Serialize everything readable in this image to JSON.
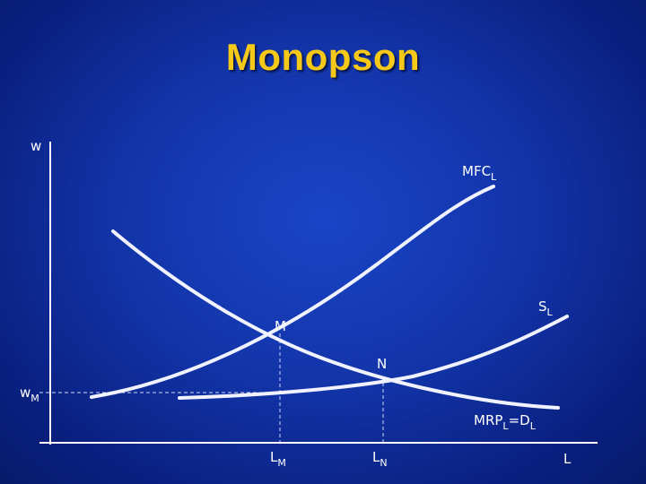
{
  "title": "Monopson",
  "colors": {
    "background": "#1234a8",
    "title": "#f6c818",
    "curve": "#f0f2ff",
    "axis": "#ffffff",
    "guide": "#d0d6f0"
  },
  "axes": {
    "y_label": "w",
    "x_label": "L"
  },
  "curves": [
    {
      "name": "MFC",
      "sub": "L"
    },
    {
      "name": "S",
      "sub": "L"
    },
    {
      "name": "MRP",
      "sub": "L",
      "suffix": "=D",
      "suffix_sub": "L"
    }
  ],
  "points": [
    {
      "label": "M"
    },
    {
      "label": "N"
    }
  ],
  "markers": {
    "wage": {
      "name": "w",
      "sub": "M"
    },
    "quantities": [
      {
        "name": "L",
        "sub": "M"
      },
      {
        "name": "L",
        "sub": "N"
      }
    ]
  }
}
